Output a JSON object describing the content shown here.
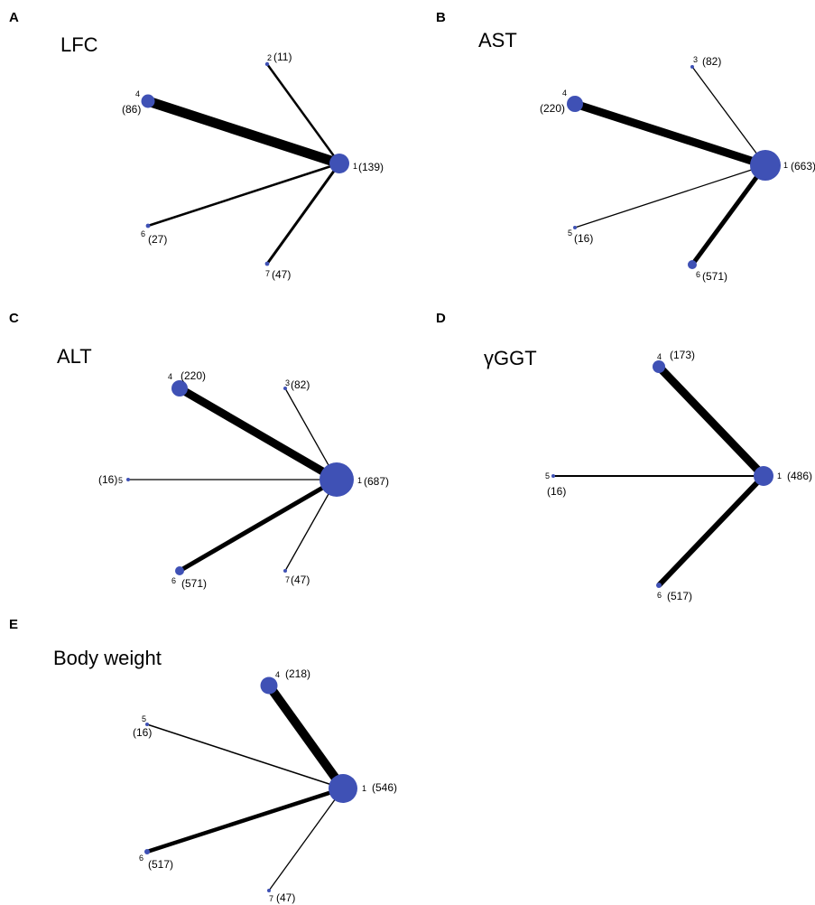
{
  "figure": {
    "panels": [
      {
        "id": "A",
        "title": "LFC",
        "nodes": [
          {
            "num": "1",
            "n": "(139)"
          },
          {
            "num": "2",
            "n": "(11)"
          },
          {
            "num": "4",
            "n": "(86)"
          },
          {
            "num": "6",
            "n": "(27)"
          },
          {
            "num": "7",
            "n": "(47)"
          }
        ],
        "edges": [
          {
            "from": "1",
            "to": "2"
          },
          {
            "from": "1",
            "to": "4"
          },
          {
            "from": "1",
            "to": "6"
          },
          {
            "from": "1",
            "to": "7"
          }
        ]
      },
      {
        "id": "B",
        "title": "AST",
        "nodes": [
          {
            "num": "1",
            "n": "(663)"
          },
          {
            "num": "3",
            "n": "(82)"
          },
          {
            "num": "4",
            "n": "(220)"
          },
          {
            "num": "5",
            "n": "(16)"
          },
          {
            "num": "6",
            "n": "(571)"
          }
        ],
        "edges": [
          {
            "from": "1",
            "to": "3"
          },
          {
            "from": "1",
            "to": "4"
          },
          {
            "from": "1",
            "to": "5"
          },
          {
            "from": "1",
            "to": "6"
          }
        ]
      },
      {
        "id": "C",
        "title": "ALT",
        "nodes": [
          {
            "num": "1",
            "n": "(687)"
          },
          {
            "num": "3",
            "n": "(82)"
          },
          {
            "num": "4",
            "n": "(220)"
          },
          {
            "num": "5",
            "n": "(16)"
          },
          {
            "num": "6",
            "n": "(571)"
          },
          {
            "num": "7",
            "n": "(47)"
          }
        ],
        "edges": [
          {
            "from": "1",
            "to": "3"
          },
          {
            "from": "1",
            "to": "4"
          },
          {
            "from": "1",
            "to": "5"
          },
          {
            "from": "1",
            "to": "6"
          },
          {
            "from": "1",
            "to": "7"
          }
        ]
      },
      {
        "id": "D",
        "title": "γGGT",
        "nodes": [
          {
            "num": "1",
            "n": "(486)"
          },
          {
            "num": "4",
            "n": "(173)"
          },
          {
            "num": "5",
            "n": "(16)"
          },
          {
            "num": "6",
            "n": "(517)"
          }
        ],
        "edges": [
          {
            "from": "1",
            "to": "4"
          },
          {
            "from": "1",
            "to": "5"
          },
          {
            "from": "1",
            "to": "6"
          }
        ]
      },
      {
        "id": "E",
        "title": "Body weight",
        "nodes": [
          {
            "num": "1",
            "n": "(546)"
          },
          {
            "num": "4",
            "n": "(218)"
          },
          {
            "num": "5",
            "n": "(16)"
          },
          {
            "num": "6",
            "n": "(517)"
          },
          {
            "num": "7",
            "n": "(47)"
          }
        ],
        "edges": [
          {
            "from": "1",
            "to": "4"
          },
          {
            "from": "1",
            "to": "5"
          },
          {
            "from": "1",
            "to": "6"
          },
          {
            "from": "1",
            "to": "7"
          }
        ]
      }
    ],
    "colors": {
      "node_fill": "#3f51b5",
      "edge": "#000000"
    }
  }
}
